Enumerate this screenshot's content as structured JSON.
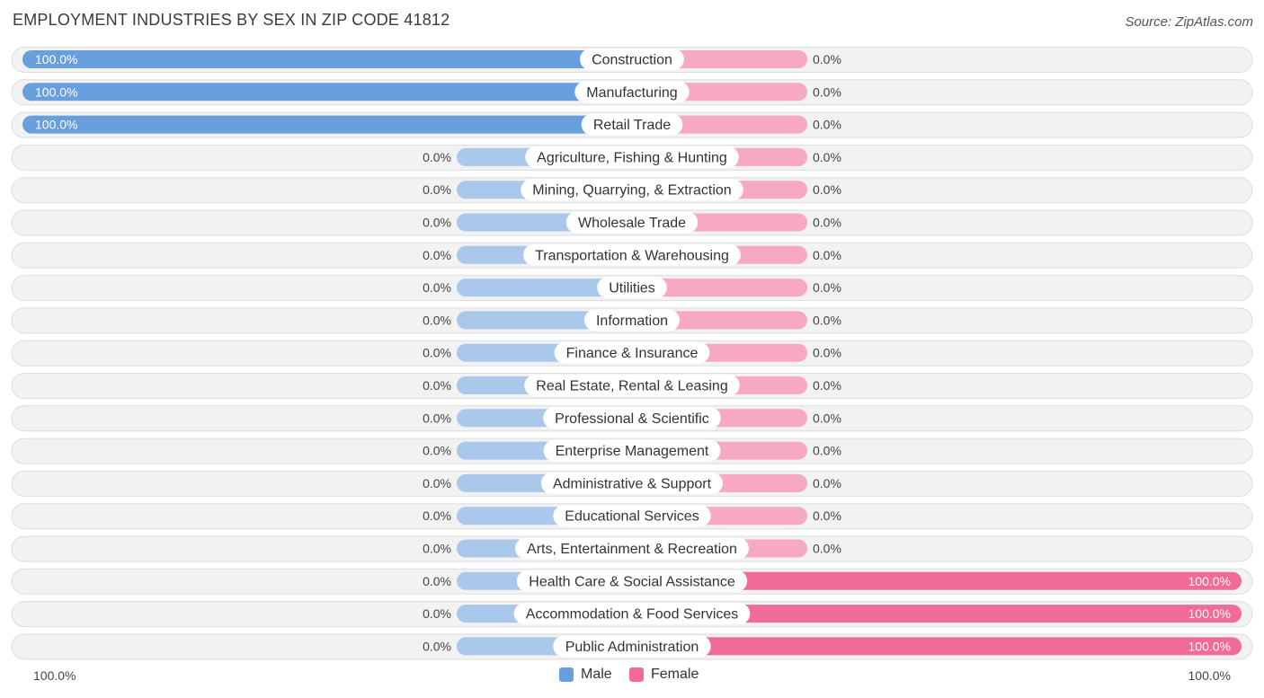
{
  "header": {
    "title": "EMPLOYMENT INDUSTRIES BY SEX IN ZIP CODE 41812",
    "source": "Source: ZipAtlas.com"
  },
  "colors": {
    "male_full": "#6a9fdd",
    "male_stub": "#aac8ec",
    "female_full": "#f06b95",
    "female_stub": "#f7a8c2",
    "row_bg": "#f2f2f2",
    "row_border": "#dddddd"
  },
  "legend": {
    "male": "Male",
    "female": "Female"
  },
  "axis": {
    "left": "100.0%",
    "right": "100.0%"
  },
  "chart_data": {
    "type": "bar",
    "orientation": "horizontal-diverging",
    "title": "EMPLOYMENT INDUSTRIES BY SEX IN ZIP CODE 41812",
    "xlim": [
      -100,
      100
    ],
    "categories": [
      "Construction",
      "Manufacturing",
      "Retail Trade",
      "Agriculture, Fishing & Hunting",
      "Mining, Quarrying, & Extraction",
      "Wholesale Trade",
      "Transportation & Warehousing",
      "Utilities",
      "Information",
      "Finance & Insurance",
      "Real Estate, Rental & Leasing",
      "Professional & Scientific",
      "Enterprise Management",
      "Administrative & Support",
      "Educational Services",
      "Arts, Entertainment & Recreation",
      "Health Care & Social Assistance",
      "Accommodation & Food Services",
      "Public Administration"
    ],
    "series": [
      {
        "name": "Male",
        "values": [
          100,
          100,
          100,
          0,
          0,
          0,
          0,
          0,
          0,
          0,
          0,
          0,
          0,
          0,
          0,
          0,
          0,
          0,
          0
        ],
        "labels": [
          "100.0%",
          "100.0%",
          "100.0%",
          "0.0%",
          "0.0%",
          "0.0%",
          "0.0%",
          "0.0%",
          "0.0%",
          "0.0%",
          "0.0%",
          "0.0%",
          "0.0%",
          "0.0%",
          "0.0%",
          "0.0%",
          "0.0%",
          "0.0%",
          "0.0%"
        ]
      },
      {
        "name": "Female",
        "values": [
          0,
          0,
          0,
          0,
          0,
          0,
          0,
          0,
          0,
          0,
          0,
          0,
          0,
          0,
          0,
          0,
          100,
          100,
          100
        ],
        "labels": [
          "0.0%",
          "0.0%",
          "0.0%",
          "0.0%",
          "0.0%",
          "0.0%",
          "0.0%",
          "0.0%",
          "0.0%",
          "0.0%",
          "0.0%",
          "0.0%",
          "0.0%",
          "0.0%",
          "0.0%",
          "0.0%",
          "100.0%",
          "100.0%",
          "100.0%"
        ]
      }
    ],
    "legend_position": "bottom-center",
    "grid": false
  }
}
